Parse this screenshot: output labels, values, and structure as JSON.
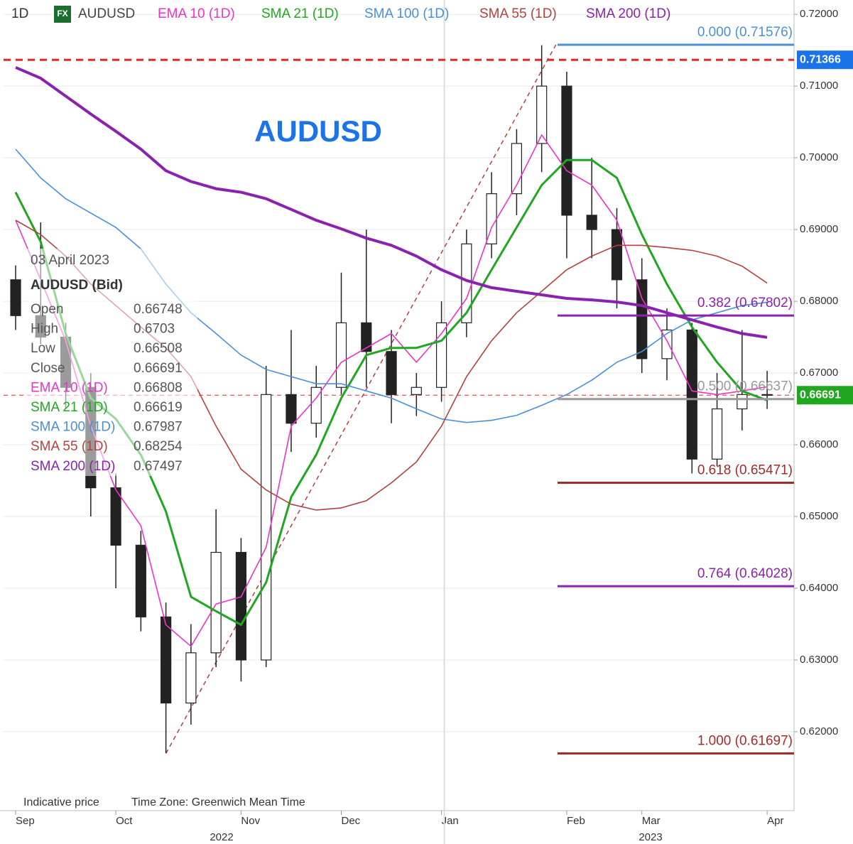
{
  "chart_data": {
    "type": "candlestick",
    "title": "AUDUSD",
    "timeframe": "1D",
    "badge": "FX",
    "price": {
      "name": "AUDUSD",
      "color": "#222222",
      "ohlc": [
        [
          0.683,
          0.685,
          0.676,
          0.678
        ],
        [
          0.678,
          0.691,
          0.674,
          0.675
        ],
        [
          0.675,
          0.677,
          0.665,
          0.668
        ],
        [
          0.668,
          0.67,
          0.65,
          0.654
        ],
        [
          0.654,
          0.656,
          0.64,
          0.646
        ],
        [
          0.646,
          0.648,
          0.634,
          0.636
        ],
        [
          0.636,
          0.638,
          0.617,
          0.624
        ],
        [
          0.624,
          0.635,
          0.621,
          0.631
        ],
        [
          0.631,
          0.651,
          0.629,
          0.645
        ],
        [
          0.645,
          0.647,
          0.627,
          0.63
        ],
        [
          0.63,
          0.671,
          0.629,
          0.667
        ],
        [
          0.667,
          0.676,
          0.659,
          0.663
        ],
        [
          0.663,
          0.671,
          0.661,
          0.668
        ],
        [
          0.668,
          0.684,
          0.667,
          0.677
        ],
        [
          0.677,
          0.69,
          0.668,
          0.673
        ],
        [
          0.673,
          0.676,
          0.663,
          0.667
        ],
        [
          0.667,
          0.67,
          0.664,
          0.668
        ],
        [
          0.668,
          0.68,
          0.666,
          0.677
        ],
        [
          0.677,
          0.69,
          0.675,
          0.688
        ],
        [
          0.688,
          0.698,
          0.686,
          0.695
        ],
        [
          0.695,
          0.704,
          0.692,
          0.702
        ],
        [
          0.702,
          0.7157,
          0.698,
          0.71
        ],
        [
          0.71,
          0.712,
          0.686,
          0.692
        ],
        [
          0.692,
          0.7,
          0.686,
          0.69
        ],
        [
          0.69,
          0.693,
          0.679,
          0.683
        ],
        [
          0.683,
          0.686,
          0.67,
          0.672
        ],
        [
          0.672,
          0.679,
          0.669,
          0.676
        ],
        [
          0.676,
          0.677,
          0.656,
          0.658
        ],
        [
          0.658,
          0.67,
          0.657,
          0.665
        ],
        [
          0.665,
          0.676,
          0.662,
          0.667
        ],
        [
          0.667,
          0.6703,
          0.665,
          0.6669
        ]
      ]
    },
    "categories": [
      "Sep",
      null,
      null,
      null,
      "Oct",
      null,
      null,
      null,
      null,
      "Nov",
      null,
      null,
      null,
      "Dec",
      null,
      null,
      null,
      "Jan",
      null,
      null,
      null,
      null,
      "Feb",
      null,
      null,
      "Mar",
      null,
      null,
      null,
      null,
      "Apr"
    ],
    "years": [
      "2022",
      "2023"
    ],
    "series": [
      {
        "name": "EMA 10 (1D)",
        "color": "#f032c8",
        "width": 1.6,
        "values": [
          0.6913,
          0.683,
          0.6745,
          0.6626,
          0.6537,
          0.6487,
          0.6349,
          0.6319,
          0.6378,
          0.6388,
          0.6457,
          0.6626,
          0.6665,
          0.6715,
          0.6735,
          0.6755,
          0.6715,
          0.6755,
          0.6804,
          0.6903,
          0.6962,
          0.7032,
          0.6982,
          0.6962,
          0.6913,
          0.6804,
          0.6745,
          0.6675,
          0.667,
          0.6675,
          0.66808
        ]
      },
      {
        "name": "SMA 21 (1D)",
        "color": "#1fa81f",
        "width": 3,
        "values": [
          0.6952,
          0.6883,
          0.6755,
          0.6665,
          0.6636,
          0.6586,
          0.6507,
          0.6388,
          0.6368,
          0.6349,
          0.6408,
          0.6527,
          0.6586,
          0.6665,
          0.6725,
          0.6735,
          0.6735,
          0.6745,
          0.6784,
          0.6844,
          0.6903,
          0.6962,
          0.6997,
          0.6997,
          0.6972,
          0.6893,
          0.6824,
          0.6764,
          0.6715,
          0.6675,
          0.66619
        ]
      },
      {
        "name": "SMA 100 (1D)",
        "color": "#4a90d9",
        "width": 1.6,
        "values": [
          0.7012,
          0.6972,
          0.6943,
          0.6923,
          0.6903,
          0.6873,
          0.6824,
          0.6784,
          0.6755,
          0.6725,
          0.6705,
          0.6695,
          0.6685,
          0.6685,
          0.6675,
          0.6665,
          0.665,
          0.6636,
          0.6631,
          0.6634,
          0.6641,
          0.6655,
          0.667,
          0.669,
          0.6715,
          0.673,
          0.6755,
          0.6774,
          0.6784,
          0.6794,
          0.67987
        ]
      },
      {
        "name": "SMA 55 (1D)",
        "color": "#b5413e",
        "width": 1.6,
        "values": [
          0.6913,
          0.6893,
          0.6863,
          0.6824,
          0.6794,
          0.6764,
          0.6735,
          0.6695,
          0.6626,
          0.6566,
          0.6537,
          0.6517,
          0.6509,
          0.6512,
          0.6522,
          0.6547,
          0.6576,
          0.6626,
          0.6695,
          0.6745,
          0.6784,
          0.6814,
          0.6844,
          0.6863,
          0.6878,
          0.6878,
          0.6875,
          0.6871,
          0.6863,
          0.6849,
          0.68254
        ]
      },
      {
        "name": "SMA 200 (1D)",
        "color": "#8a22b0",
        "width": 4,
        "values": [
          0.7126,
          0.7111,
          0.7086,
          0.7061,
          0.7037,
          0.7012,
          0.6982,
          0.6967,
          0.6957,
          0.6952,
          0.6943,
          0.6928,
          0.6913,
          0.6901,
          0.6888,
          0.6878,
          0.6863,
          0.6844,
          0.6829,
          0.6819,
          0.6814,
          0.6809,
          0.6804,
          0.6802,
          0.6799,
          0.6794,
          0.6784,
          0.6774,
          0.6764,
          0.6755,
          0.67497
        ]
      }
    ],
    "fib_levels": [
      {
        "value": 0.71576,
        "label": "0.000 (0.71576)",
        "color": "#4a90d9"
      },
      {
        "value": 0.67802,
        "label": "0.382 (0.67802)",
        "color": "#8a22b0"
      },
      {
        "value": 0.66637,
        "label": "0.500 (0.66637)",
        "color": "#999999"
      },
      {
        "value": 0.65471,
        "label": "0.618 (0.65471)",
        "color": "#a52a2a"
      },
      {
        "value": 0.64028,
        "label": "0.764 (0.64028)",
        "color": "#8a22b0"
      },
      {
        "value": 0.61697,
        "label": "1.000 (0.61697)",
        "color": "#a52a2a"
      }
    ],
    "ref_price": 0.71366,
    "last_price": 0.66691,
    "ylim": [
      0.609,
      0.722
    ],
    "yticks": [
      {
        "value": 0.62,
        "label": "0.62000"
      },
      {
        "value": 0.63,
        "label": "0.63000"
      },
      {
        "value": 0.64,
        "label": "0.64000"
      },
      {
        "value": 0.65,
        "label": "0.65000"
      },
      {
        "value": 0.66,
        "label": "0.66000"
      },
      {
        "value": 0.67,
        "label": "0.67000"
      },
      {
        "value": 0.68,
        "label": "0.68000"
      },
      {
        "value": 0.69,
        "label": "0.69000"
      },
      {
        "value": 0.7,
        "label": "0.70000"
      },
      {
        "value": 0.71,
        "label": "0.71000"
      },
      {
        "value": 0.72,
        "label": "0.72000"
      }
    ],
    "grid": true,
    "info": {
      "date": "03 April 2023",
      "symbol": "AUDUSD (Bid)",
      "rows": [
        {
          "label": "Open",
          "value": 0.66748
        },
        {
          "label": "High",
          "value": 0.6703
        },
        {
          "label": "Low",
          "value": 0.66508
        },
        {
          "label": "Close",
          "value": 0.66691
        },
        {
          "label": "EMA 10 (1D)",
          "value": 0.66808
        },
        {
          "label": "SMA 21 (1D)",
          "value": 0.66619
        },
        {
          "label": "SMA 100 (1D)",
          "value": 0.67987
        },
        {
          "label": "SMA 55 (1D)",
          "value": 0.68254
        },
        {
          "label": "SMA 200 (1D)",
          "value": 0.67497
        }
      ]
    },
    "footer": [
      "Indicative price",
      "Time Zone: Greenwich Mean Time"
    ]
  }
}
